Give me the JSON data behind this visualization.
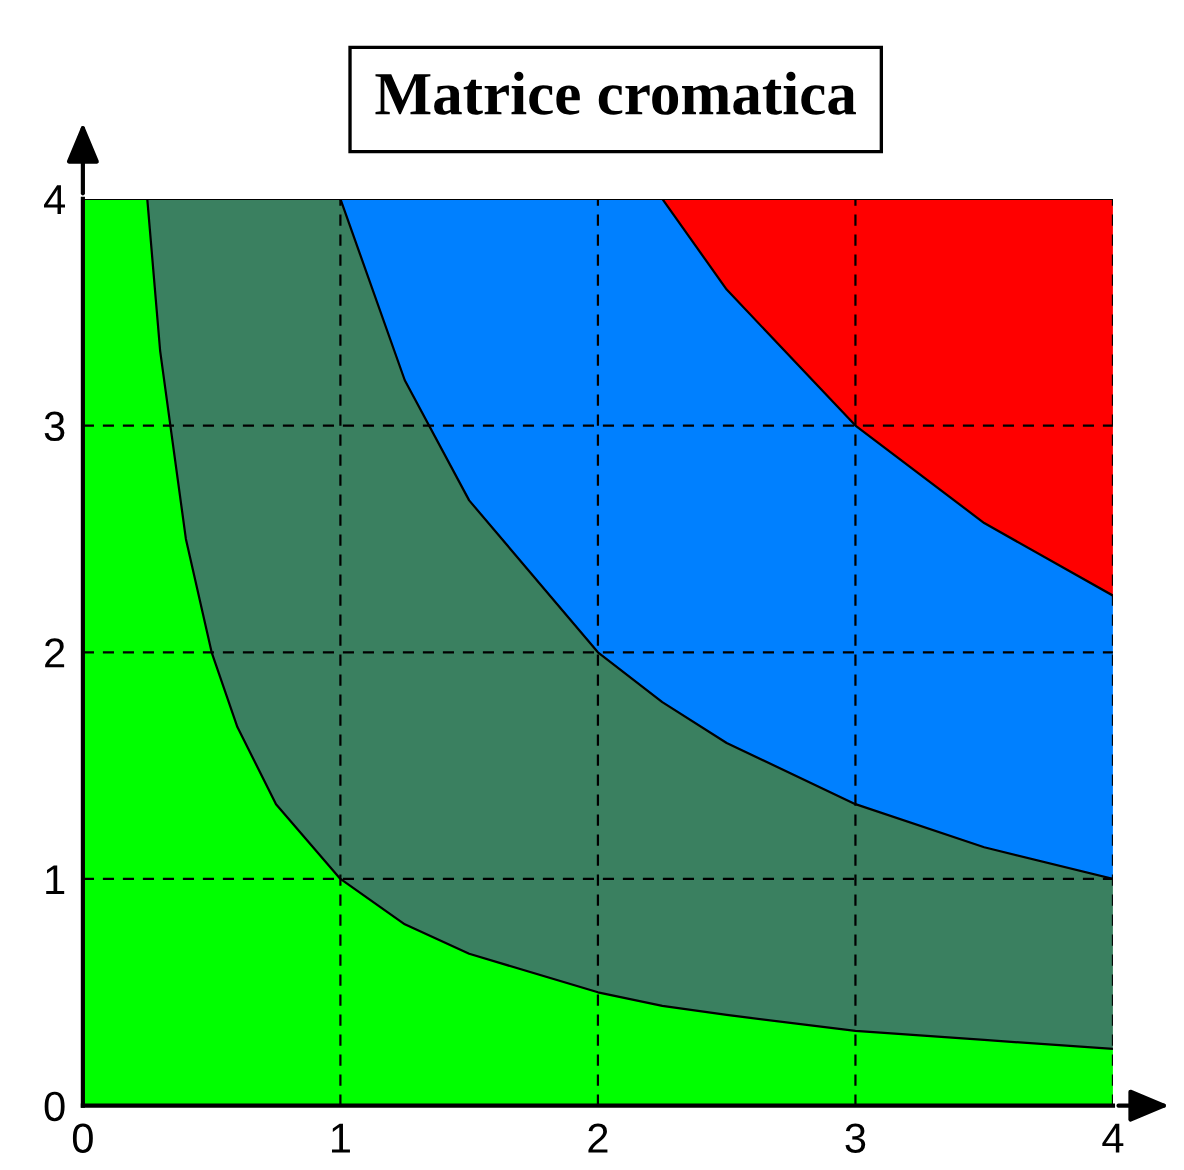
{
  "chart_data": {
    "type": "area",
    "title": "Matrice cromatica",
    "stacked": true,
    "x": [
      0,
      0.25,
      0.3,
      0.4,
      0.5,
      0.6,
      0.75,
      1,
      1.25,
      1.5,
      2,
      2.25,
      2.5,
      3,
      3.5,
      4
    ],
    "series": [
      {
        "color": "#00ff00",
        "values": [
          4,
          4,
          3.33,
          2.5,
          2,
          1.67,
          1.33,
          1,
          0.8,
          0.67,
          0.5,
          0.44,
          0.4,
          0.33,
          0.29,
          0.25
        ]
      },
      {
        "color": "#3a8060",
        "values": [
          0,
          0,
          0.67,
          1.5,
          2,
          2.33,
          2.67,
          3,
          2.4,
          2.0,
          1.5,
          1.34,
          1.2,
          1.0,
          0.85,
          0.75
        ]
      },
      {
        "color": "#0080ff",
        "values": [
          0,
          0,
          0,
          0,
          0,
          0,
          0,
          0,
          0.8,
          1.33,
          2,
          2.22,
          2.0,
          1.67,
          1.43,
          1.25
        ]
      },
      {
        "color": "#ff0000",
        "values": [
          0,
          0,
          0,
          0,
          0,
          0,
          0,
          0,
          0,
          0,
          0,
          0,
          0.4,
          1.0,
          1.43,
          1.75
        ]
      }
    ],
    "xlim": [
      0,
      4
    ],
    "ylim": [
      0,
      4
    ],
    "xticks": [
      0,
      1,
      2,
      3,
      4
    ],
    "yticks": [
      0,
      1,
      2,
      3,
      4
    ],
    "grid": true
  }
}
